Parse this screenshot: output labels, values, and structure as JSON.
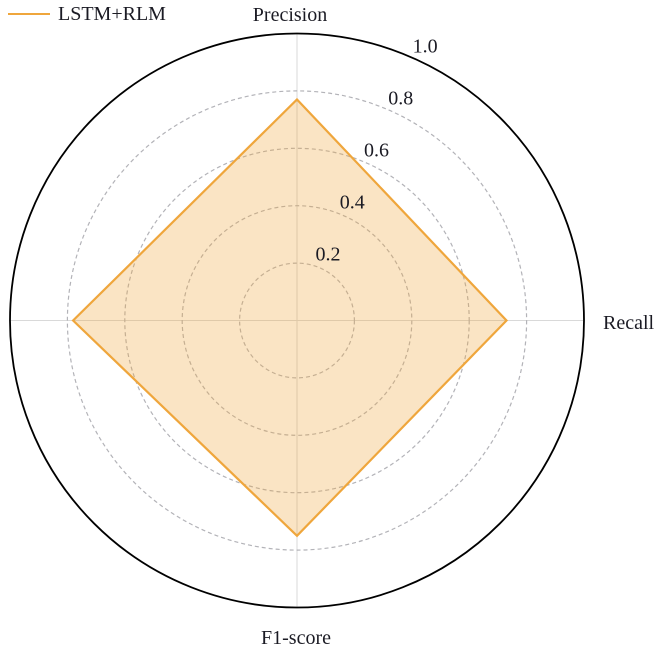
{
  "chart_data": {
    "type": "radar",
    "title": "",
    "legend": {
      "position": "top-left",
      "entries": [
        {
          "label": "LSTM+RLM",
          "color": "#EFA63C"
        }
      ]
    },
    "axes": [
      {
        "label": "Precision",
        "angle_deg": 90
      },
      {
        "label": "Recall",
        "angle_deg": 0
      },
      {
        "label": "F1-score",
        "angle_deg": 270
      },
      {
        "label": "",
        "angle_deg": 180
      }
    ],
    "series": [
      {
        "name": "LSTM+RLM",
        "values": [
          0.77,
          0.73,
          0.75,
          0.78
        ],
        "color": "#EFA63C",
        "fill_opacity": 0.3,
        "stroke_width": 2.2
      }
    ],
    "radial_axis": {
      "rlim": [
        0,
        1.0
      ],
      "ticks": [
        0.2,
        0.4,
        0.6,
        0.8,
        1.0
      ],
      "tick_labels": [
        "0.2",
        "0.4",
        "0.6",
        "0.8",
        "1.0"
      ]
    },
    "grid": {
      "inner_circles": "dashed",
      "inner_circle_color": "#b3b3b8",
      "outer_circle_color": "#000000",
      "spoke_color": "#d9d9d9"
    },
    "text_color": "#1b1b24",
    "background": "#ffffff"
  }
}
